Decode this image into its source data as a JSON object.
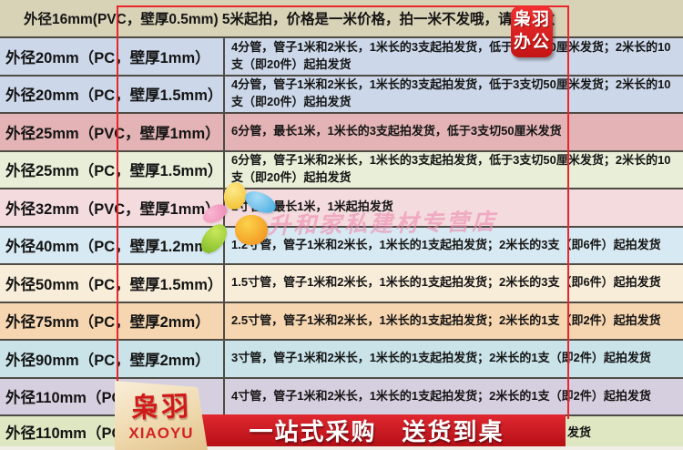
{
  "colors": {
    "red_box": "#e8262b",
    "logo_red": "#d42020",
    "banner_red": "#c01018",
    "divider": "#4f4b45",
    "header_bg": "#d8d2b6"
  },
  "header": {
    "text": "外径16mm(PVC，壁厚0.5mm) 5米起拍，价格是一米价格，拍一米不发哦，请拍米数",
    "bg": "#d8d2b6"
  },
  "table": {
    "rows": [
      {
        "spec": "外径20mm（PC，壁厚1mm）",
        "detail": "4分管，管子1米和2米长，1米长的3支起拍发货，低于3支切50厘米发货；2米长的10支（即20件）起拍发货",
        "bg": "#ccd8ea"
      },
      {
        "spec": "外径20mm（PC，壁厚1.5mm）",
        "detail": "4分管，管子1米和2米长，1米长的3支起拍发货，低于3支切50厘米发货；2米长的10支（即20件）起拍发货",
        "bg": "#ccd8ea"
      },
      {
        "spec": "外径25mm（PVC，壁厚1mm）",
        "detail": "6分管，最长1米，1米长的3支起拍发货，低于3支切50厘米发货",
        "bg": "#e3b3b5"
      },
      {
        "spec": "外径25mm（PC，壁厚1.5mm）",
        "detail": "6分管，管子1米和2米长，1米长的3支起拍发货，低于3支切50厘米发货；2米长的10支（即20件）起拍发货",
        "bg": "#e9eed8"
      },
      {
        "spec": "外径32mm（PVC，壁厚1mm）",
        "detail": "1寸管，最长1米，1米起拍发货",
        "bg": "#f3dbde"
      },
      {
        "spec": "外径40mm（PC，壁厚1.2mm）",
        "detail": "1.2寸管，管子1米和2米长，1米长的1支起拍发货；2米长的3支（即6件）起拍发货",
        "bg": "#d7e9f2"
      },
      {
        "spec": "外径50mm（PC，壁厚1.5mm）",
        "detail": "1.5寸管，管子1米和2米长，1米长的1支起拍发货；2米长的3支（即6件）起拍发货",
        "bg": "#f8edd9"
      },
      {
        "spec": "外径75mm（PC，壁厚2mm）",
        "detail": "2.5寸管，管子1米和2米长，1米长的1支起拍发货；2米长的1支（即2件）起拍发货",
        "bg": "#f6d6b0"
      },
      {
        "spec": "外径90mm（PC，壁厚2mm）",
        "detail": "3寸管，管子1米和2米长，1米长的1支起拍发货；2米长的1支（即2件）起拍发货",
        "bg": "#c9e3e9"
      },
      {
        "spec": "外径110mm（PC，",
        "detail": "4寸管，管子1米和2米长，1米长的1支起拍发货；2米长的1支（即2件）起拍发货",
        "bg": "#d6cfdf"
      },
      {
        "spec": "外径110mm（PC，",
        "detail": "",
        "bg": "#dfe7c2"
      }
    ]
  },
  "overlays": {
    "watermark_store_text": "升和家私建材专营店",
    "row12_tail": "发货"
  },
  "logos": {
    "top_right": {
      "line1": "枭羽",
      "line2": "办公"
    },
    "bottom_left": {
      "cn": "枭羽",
      "en": "XIAOYU"
    }
  },
  "banner": {
    "text": "一站式采购　送货到桌"
  }
}
